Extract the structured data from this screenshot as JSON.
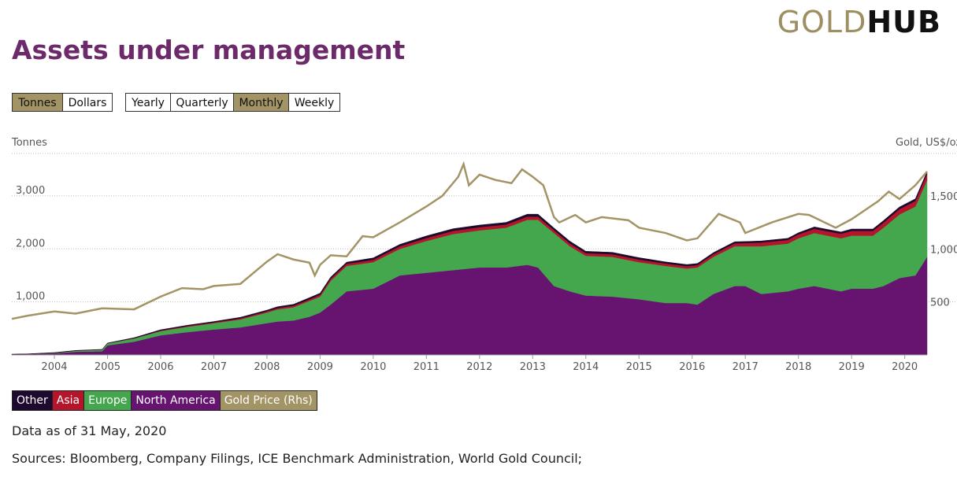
{
  "logo": {
    "part1": "GOLD",
    "part2": "HUB"
  },
  "title": "Assets under management",
  "unit_buttons": [
    {
      "label": "Tonnes",
      "active": true
    },
    {
      "label": "Dollars",
      "active": false
    }
  ],
  "period_buttons": [
    {
      "label": "Yearly",
      "active": false
    },
    {
      "label": "Quarterly",
      "active": false
    },
    {
      "label": "Monthly",
      "active": true
    },
    {
      "label": "Weekly",
      "active": false
    }
  ],
  "left_axis_label": "Tonnes",
  "right_axis_label": "Gold, US$/oz",
  "colors": {
    "other": "#1e0a2e",
    "asia": "#b5152b",
    "europe": "#44a64d",
    "north_america": "#661470",
    "gold": "#a39466"
  },
  "legend": [
    {
      "label": "Other",
      "color": "#1e0a2e"
    },
    {
      "label": "Asia",
      "color": "#b5152b"
    },
    {
      "label": "Europe",
      "color": "#44a64d"
    },
    {
      "label": "North America",
      "color": "#661470"
    },
    {
      "label": "Gold Price (Rhs)",
      "color": "#a39466"
    }
  ],
  "data_note": "Data as of 31 May, 2020",
  "sources": "Sources: Bloomberg, Company Filings, ICE Benchmark Administration, World Gold Council;",
  "chart_data": {
    "type": "area",
    "title": "Assets under management",
    "xlabel": "",
    "ylabel": "Tonnes",
    "y2label": "Gold, US$/oz",
    "xlim": [
      2003.2,
      2020.42
    ],
    "ylim": [
      0,
      3800
    ],
    "y2lim": [
      0,
      1900
    ],
    "yticks": [
      1000,
      2000,
      3000
    ],
    "ytick_labels": [
      "1,000",
      "2,000",
      "3,000"
    ],
    "y2ticks": [
      500,
      1000,
      1500
    ],
    "y2tick_labels": [
      "500",
      "1,000",
      "1,500"
    ],
    "xticks": [
      2004,
      2005,
      2006,
      2007,
      2008,
      2009,
      2010,
      2011,
      2012,
      2013,
      2014,
      2015,
      2016,
      2017,
      2018,
      2019,
      2020
    ],
    "x": [
      2003.2,
      2003.5,
      2004.0,
      2004.4,
      2004.9,
      2005.0,
      2005.5,
      2006.0,
      2006.5,
      2007.0,
      2007.5,
      2008.0,
      2008.2,
      2008.5,
      2008.8,
      2009.0,
      2009.2,
      2009.5,
      2010.0,
      2010.5,
      2011.0,
      2011.5,
      2012.0,
      2012.5,
      2012.9,
      2013.1,
      2013.4,
      2013.7,
      2014.0,
      2014.5,
      2015.0,
      2015.5,
      2015.9,
      2016.1,
      2016.4,
      2016.8,
      2017.0,
      2017.3,
      2017.8,
      2018.0,
      2018.3,
      2018.8,
      2019.0,
      2019.4,
      2019.6,
      2019.9,
      2020.2,
      2020.42
    ],
    "series": [
      {
        "name": "North America",
        "values": [
          10,
          15,
          30,
          60,
          70,
          180,
          250,
          370,
          430,
          480,
          520,
          600,
          630,
          650,
          720,
          800,
          950,
          1200,
          1250,
          1500,
          1550,
          1600,
          1650,
          1650,
          1700,
          1650,
          1300,
          1200,
          1120,
          1100,
          1050,
          980,
          980,
          950,
          1150,
          1300,
          1300,
          1150,
          1200,
          1250,
          1300,
          1200,
          1250,
          1250,
          1300,
          1450,
          1500,
          1850
        ]
      },
      {
        "name": "Europe",
        "values": [
          0,
          0,
          10,
          20,
          30,
          40,
          60,
          80,
          100,
          120,
          150,
          200,
          230,
          250,
          300,
          300,
          450,
          480,
          500,
          500,
          600,
          680,
          700,
          750,
          850,
          900,
          1000,
          850,
          750,
          750,
          700,
          700,
          650,
          700,
          700,
          750,
          750,
          900,
          900,
          950,
          1000,
          1000,
          1000,
          1000,
          1100,
          1200,
          1300,
          1450
        ]
      },
      {
        "name": "Asia",
        "values": [
          0,
          0,
          0,
          0,
          0,
          0,
          5,
          10,
          15,
          15,
          20,
          25,
          25,
          30,
          30,
          35,
          40,
          40,
          45,
          50,
          55,
          60,
          60,
          60,
          60,
          60,
          55,
          55,
          50,
          50,
          50,
          45,
          45,
          45,
          50,
          55,
          60,
          70,
          70,
          75,
          80,
          85,
          90,
          90,
          95,
          100,
          105,
          120
        ]
      },
      {
        "name": "Other",
        "values": [
          5,
          5,
          5,
          5,
          5,
          5,
          10,
          15,
          15,
          15,
          20,
          20,
          25,
          25,
          30,
          30,
          30,
          30,
          35,
          35,
          40,
          40,
          40,
          40,
          45,
          45,
          40,
          40,
          35,
          35,
          35,
          30,
          30,
          30,
          30,
          30,
          30,
          30,
          30,
          30,
          35,
          35,
          35,
          35,
          40,
          40,
          40,
          40
        ]
      }
    ],
    "line_series": {
      "name": "Gold Price (Rhs)",
      "axis": "right",
      "x": [
        2003.2,
        2003.5,
        2004.0,
        2004.4,
        2004.9,
        2005.5,
        2006.0,
        2006.4,
        2006.8,
        2007.0,
        2007.5,
        2008.0,
        2008.2,
        2008.5,
        2008.8,
        2008.9,
        2009.0,
        2009.2,
        2009.5,
        2009.8,
        2010.0,
        2010.5,
        2011.0,
        2011.3,
        2011.6,
        2011.7,
        2011.8,
        2012.0,
        2012.3,
        2012.6,
        2012.8,
        2013.0,
        2013.2,
        2013.4,
        2013.5,
        2013.8,
        2014.0,
        2014.3,
        2014.8,
        2015.0,
        2015.5,
        2015.9,
        2016.1,
        2016.5,
        2016.9,
        2017.0,
        2017.5,
        2018.0,
        2018.2,
        2018.7,
        2019.0,
        2019.5,
        2019.7,
        2019.9,
        2020.2,
        2020.42
      ],
      "values": [
        340,
        370,
        410,
        390,
        440,
        430,
        550,
        630,
        620,
        650,
        670,
        880,
        950,
        900,
        870,
        750,
        850,
        940,
        930,
        1120,
        1110,
        1250,
        1400,
        1500,
        1680,
        1800,
        1600,
        1700,
        1650,
        1620,
        1750,
        1680,
        1600,
        1300,
        1250,
        1320,
        1250,
        1300,
        1270,
        1200,
        1150,
        1080,
        1100,
        1330,
        1250,
        1150,
        1250,
        1330,
        1320,
        1200,
        1280,
        1450,
        1540,
        1470,
        1600,
        1730
      ]
    }
  }
}
